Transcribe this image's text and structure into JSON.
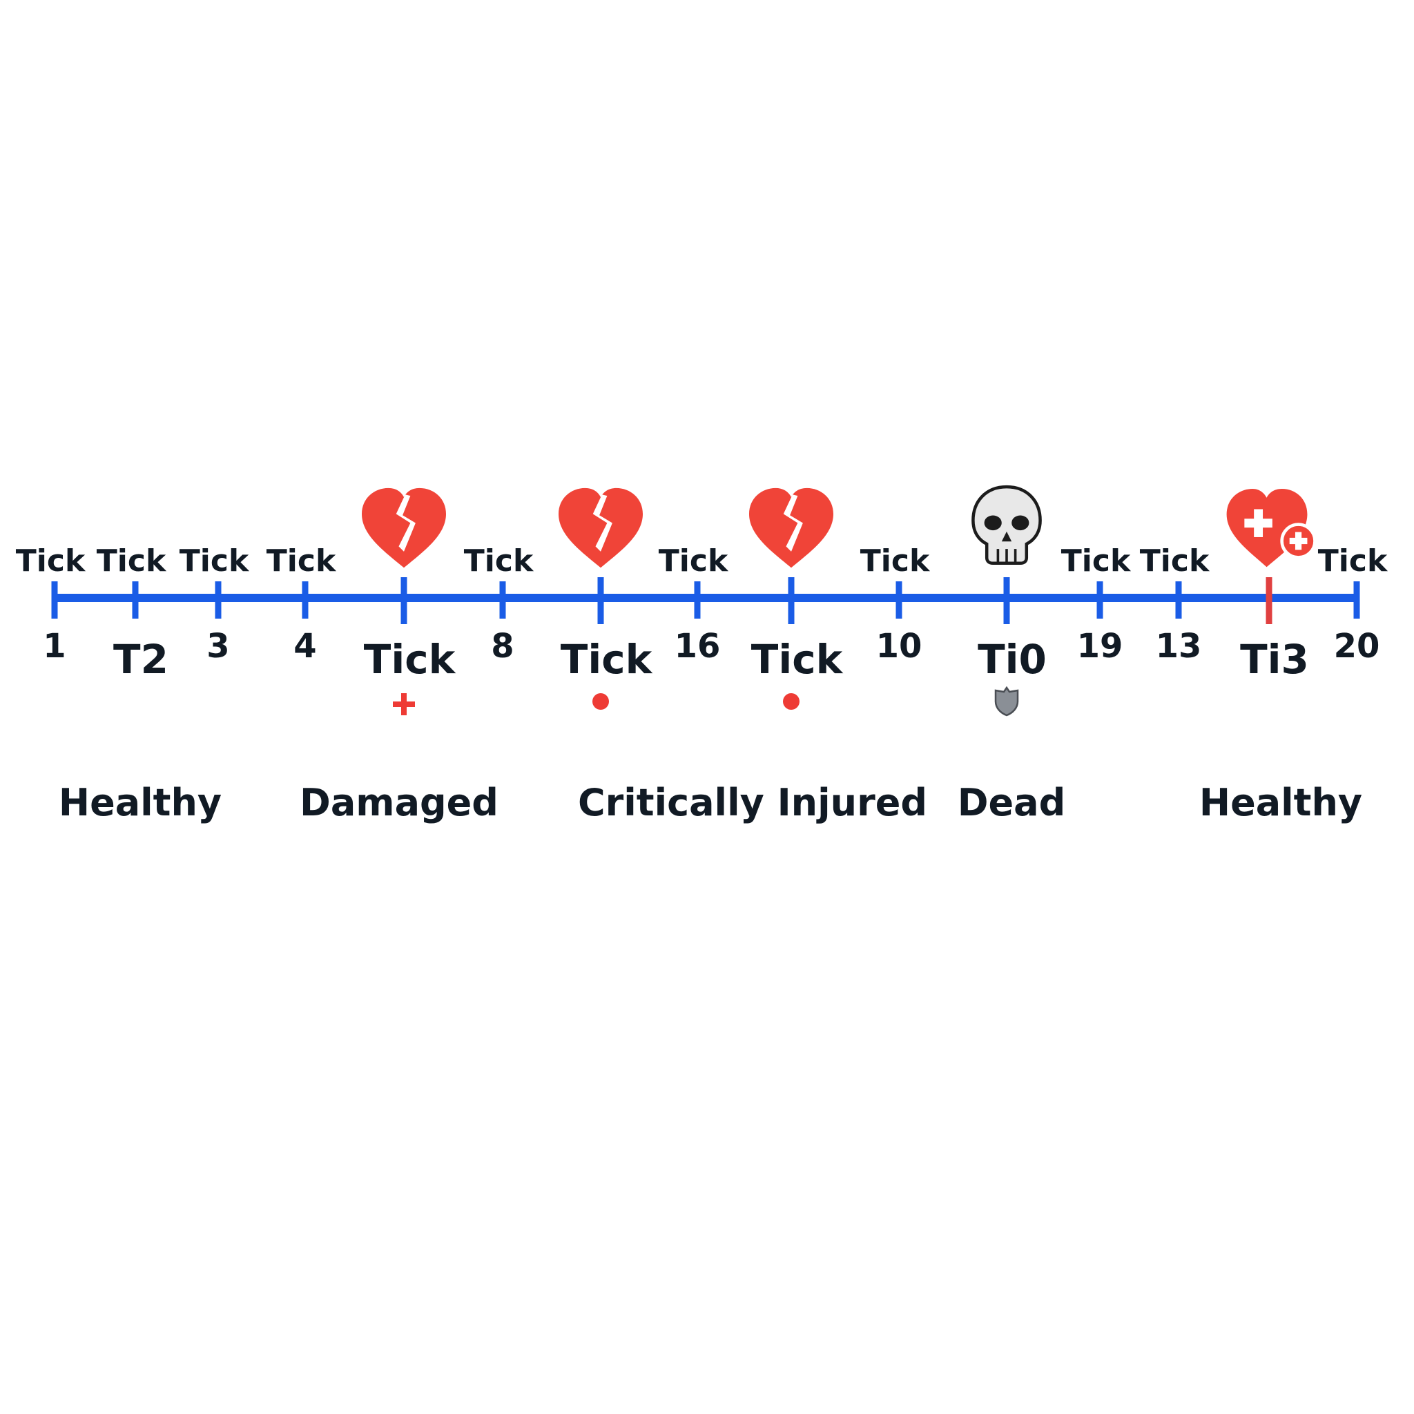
{
  "ticks": [
    {
      "top": "Tick",
      "bottom": "1",
      "bottom_style": "num",
      "event": null,
      "marker": null,
      "accent": false
    },
    {
      "top": "Tick",
      "bottom": "T2",
      "bottom_style": "big",
      "event": null,
      "marker": null,
      "accent": false
    },
    {
      "top": "Tick",
      "bottom": "3",
      "bottom_style": "num",
      "event": null,
      "marker": null,
      "accent": false
    },
    {
      "top": "Tick",
      "bottom": "4",
      "bottom_style": "num",
      "event": null,
      "marker": null,
      "accent": false
    },
    {
      "top": "",
      "bottom": "Tick",
      "bottom_style": "big",
      "event": "broken-heart",
      "marker": "plus",
      "accent": false
    },
    {
      "top": "Tick",
      "bottom": "8",
      "bottom_style": "num",
      "event": null,
      "marker": null,
      "accent": false
    },
    {
      "top": "",
      "bottom": "Tick",
      "bottom_style": "big",
      "event": "broken-heart",
      "marker": "dot",
      "accent": false
    },
    {
      "top": "Tick",
      "bottom": "16",
      "bottom_style": "num",
      "event": null,
      "marker": null,
      "accent": false
    },
    {
      "top": "",
      "bottom": "Tick",
      "bottom_style": "big",
      "event": "broken-heart",
      "marker": "dot",
      "accent": false
    },
    {
      "top": "Tick",
      "bottom": "10",
      "bottom_style": "num",
      "event": null,
      "marker": null,
      "accent": false
    },
    {
      "top": "",
      "bottom": "Ti0",
      "bottom_style": "big",
      "event": "skull",
      "marker": "shield",
      "accent": false
    },
    {
      "top": "Tick",
      "bottom": "19",
      "bottom_style": "num",
      "event": null,
      "marker": null,
      "accent": false
    },
    {
      "top": "Tick",
      "bottom": "13",
      "bottom_style": "num",
      "event": null,
      "marker": null,
      "accent": false
    },
    {
      "top": "",
      "bottom": "Ti3",
      "bottom_style": "big",
      "event": "heal-heart",
      "marker": null,
      "accent": true
    },
    {
      "top": "Tick",
      "bottom": "20",
      "bottom_style": "num",
      "event": null,
      "marker": null,
      "accent": false
    }
  ],
  "states": [
    "Healthy",
    "Damaged",
    "Critically Injured",
    "Dead",
    "Healthy"
  ],
  "colors": {
    "axis": "#1a5ce6",
    "accent_tick": "#e04040",
    "heart": "#f04438",
    "marker": "#ee3b35",
    "skull": "#e8e8e8",
    "shield": "#8a8f96",
    "text": "#111a24"
  }
}
